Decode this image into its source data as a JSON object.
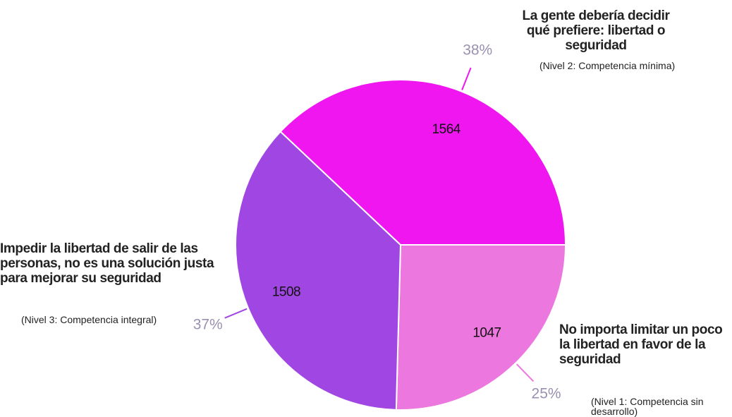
{
  "chart_data": {
    "type": "pie",
    "categories": [
      "No importa limitar un poco la libertad en favor de la seguridad",
      "Impedir la libertad de salir de las personas, no es una solución justa para mejorar su seguridad",
      "La gente debería decidir qué prefiere: libertad o seguridad"
    ],
    "sublabels": [
      "(Nivel 1: Competencia sin desarrollo)",
      "(Nivel 3: Competencia integral)",
      "(Nivel 2: Competencia mínima)"
    ],
    "values": [
      1047,
      1508,
      1564
    ],
    "percents": [
      25,
      37,
      38
    ],
    "percent_labels": [
      "25%",
      "37%",
      "38%"
    ],
    "colors": [
      "#ec77df",
      "#a046e3",
      "#f016f0"
    ]
  }
}
